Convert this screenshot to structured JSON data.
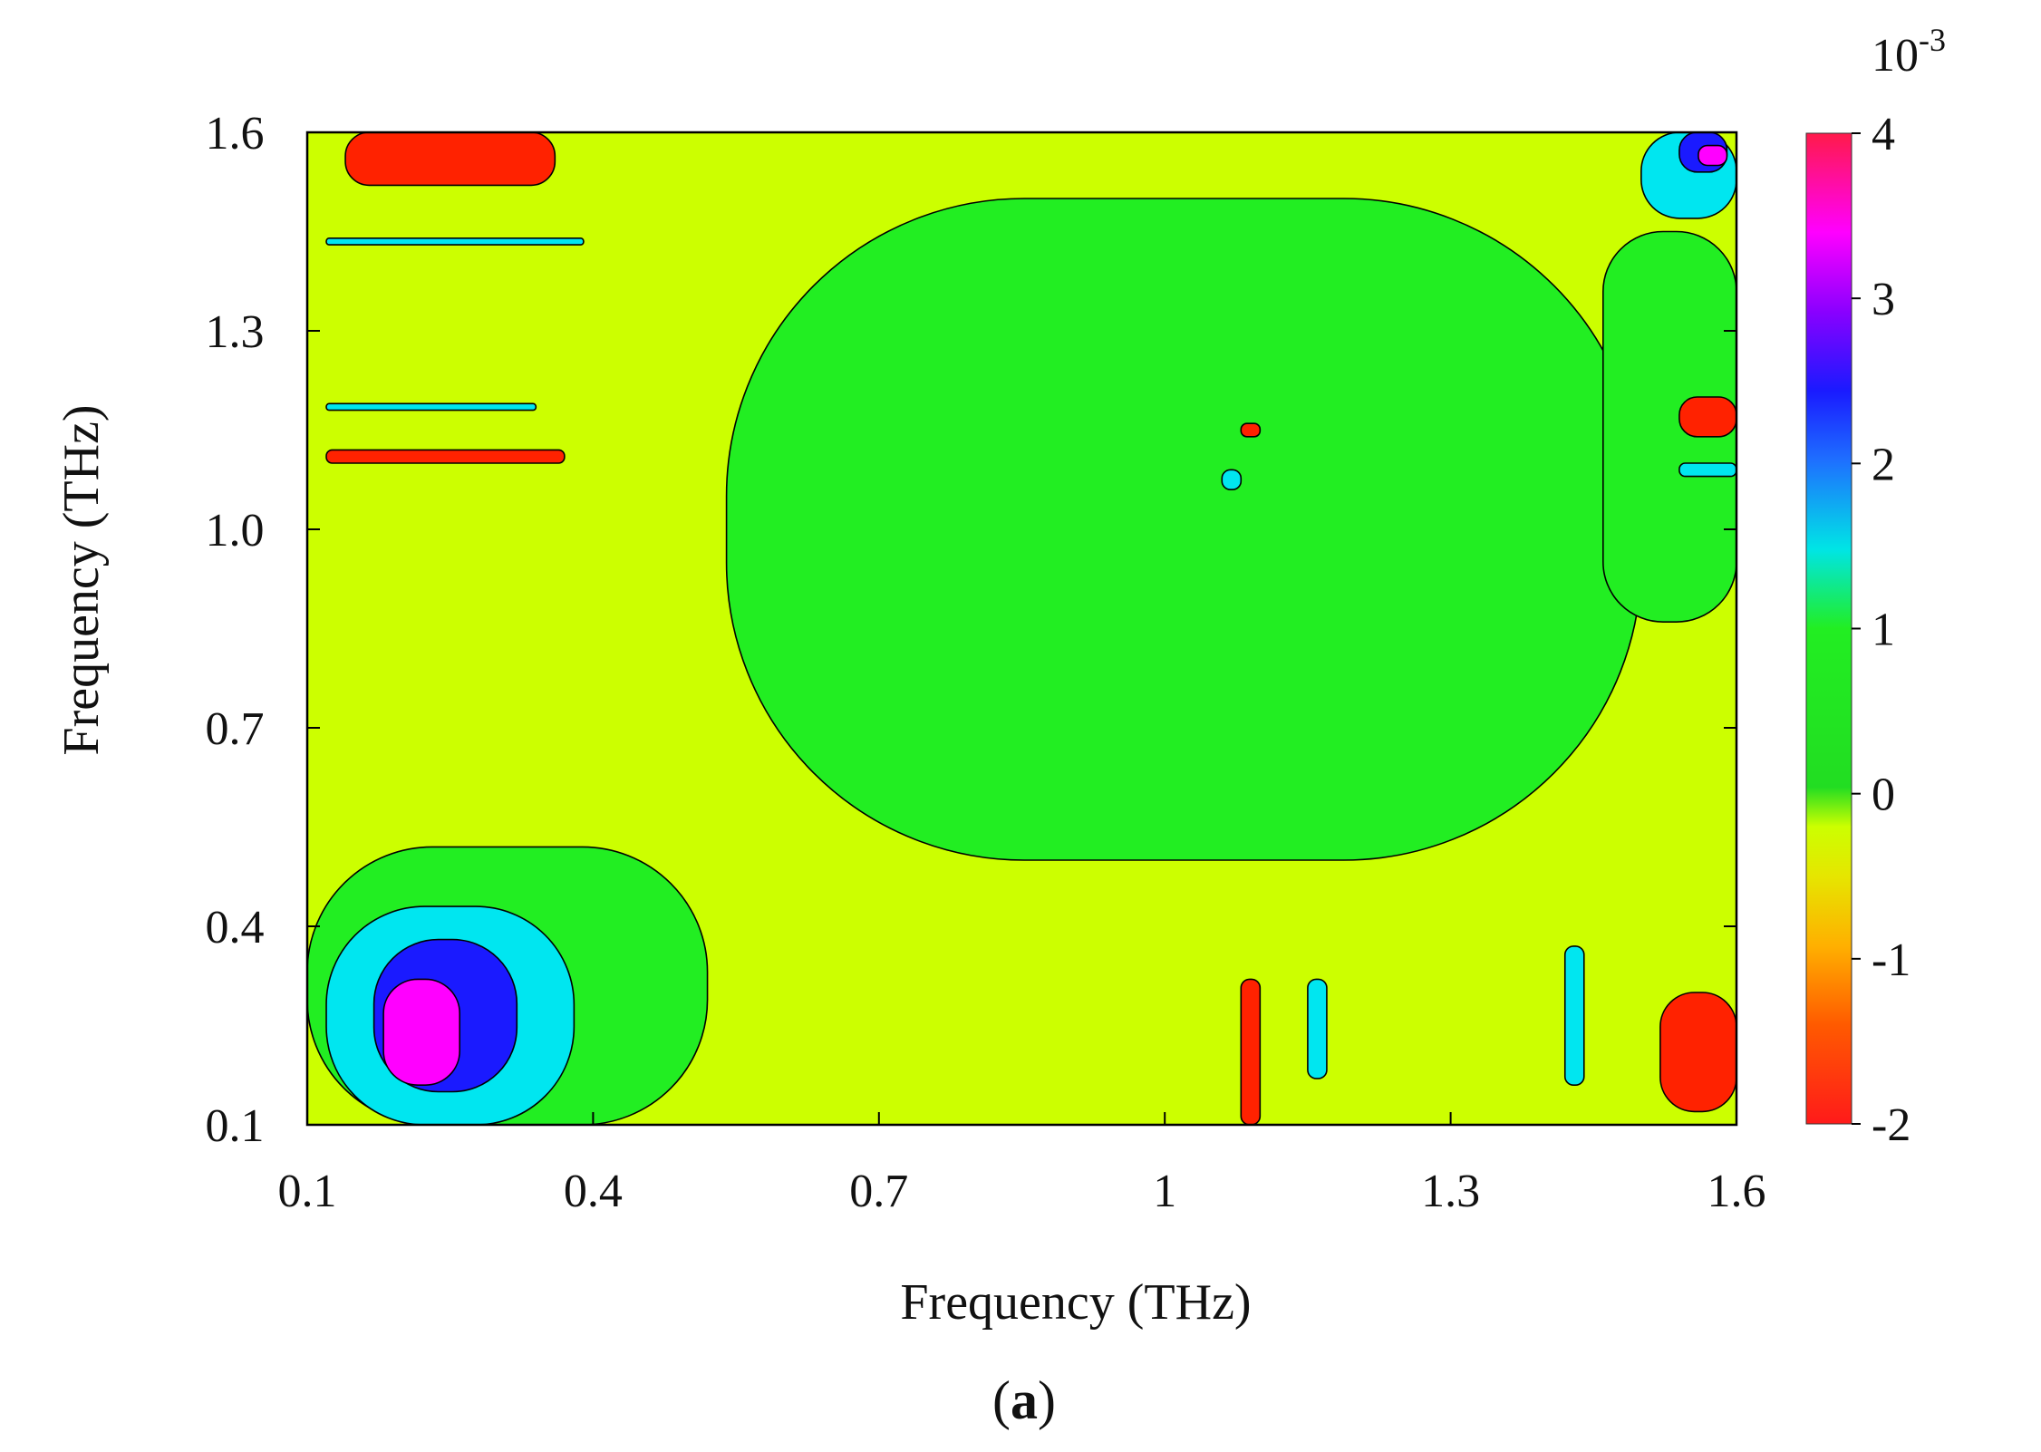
{
  "chart_data": {
    "type": "heatmap",
    "xlabel": "Frequency (THz)",
    "ylabel": "Frequency (THz)",
    "xlim": [
      0.1,
      1.6
    ],
    "ylim": [
      0.1,
      1.6
    ],
    "x_ticks": [
      "0.1",
      "0.4",
      "0.7",
      "1",
      "1.3",
      "1.6"
    ],
    "y_ticks": [
      "0.1",
      "0.4",
      "0.7",
      "1.0",
      "1.3",
      "1.6"
    ],
    "colorbar": {
      "range": [
        -2,
        4
      ],
      "ticks": [
        "-2",
        "-1",
        "0",
        "1",
        "2",
        "3",
        "4"
      ],
      "exponent_base": "10",
      "exponent_power": "-3",
      "colors": [
        "#ff1a1a",
        "#ff8a00",
        "#e6e600",
        "#ccff00",
        "#22dd22",
        "#00e5e5",
        "#1e6fff",
        "#1a1aff",
        "#b000ff",
        "#ff00ff"
      ]
    },
    "background_level": -0.6,
    "features": [
      {
        "x": [
          0.12,
          0.38
        ],
        "y": [
          0.1,
          0.43
        ],
        "level": 1.0
      },
      {
        "x": [
          0.17,
          0.32
        ],
        "y": [
          0.15,
          0.38
        ],
        "level": 2.0
      },
      {
        "x": [
          0.18,
          0.26
        ],
        "y": [
          0.16,
          0.32
        ],
        "level": 3.0
      },
      {
        "x": [
          0.1,
          0.52
        ],
        "y": [
          0.1,
          0.52
        ],
        "level": 0.3
      },
      {
        "x": [
          0.12,
          0.39
        ],
        "y": [
          1.43,
          1.44
        ],
        "level": 1.0
      },
      {
        "x": [
          0.12,
          0.34
        ],
        "y": [
          1.18,
          1.19
        ],
        "level": 1.0
      },
      {
        "x": [
          0.12,
          0.37
        ],
        "y": [
          1.1,
          1.12
        ],
        "level": -1.6
      },
      {
        "x": [
          0.14,
          0.36
        ],
        "y": [
          1.52,
          1.6
        ],
        "level": -1.6
      },
      {
        "x": [
          1.08,
          1.1
        ],
        "y": [
          0.1,
          0.32
        ],
        "level": -1.8
      },
      {
        "x": [
          1.52,
          1.6
        ],
        "y": [
          0.12,
          0.3
        ],
        "level": -1.7
      },
      {
        "x": [
          1.5,
          1.6
        ],
        "y": [
          1.47,
          1.6
        ],
        "level": 1.0
      },
      {
        "x": [
          1.54,
          1.59
        ],
        "y": [
          1.54,
          1.6
        ],
        "level": 2.2
      },
      {
        "x": [
          1.56,
          1.59
        ],
        "y": [
          1.55,
          1.58
        ],
        "level": 3.4
      },
      {
        "x": [
          1.42,
          1.44
        ],
        "y": [
          0.16,
          0.37
        ],
        "level": 1.0
      },
      {
        "x": [
          1.15,
          1.17
        ],
        "y": [
          0.17,
          0.32
        ],
        "level": 1.0
      },
      {
        "x": [
          1.06,
          1.08
        ],
        "y": [
          1.06,
          1.09
        ],
        "level": 1.2
      },
      {
        "x": [
          1.08,
          1.1
        ],
        "y": [
          1.14,
          1.16
        ],
        "level": -1.6
      },
      {
        "x": [
          1.54,
          1.6
        ],
        "y": [
          1.14,
          1.2
        ],
        "level": -1.5
      },
      {
        "x": [
          1.54,
          1.6
        ],
        "y": [
          1.08,
          1.1
        ],
        "level": 1.0
      },
      {
        "x": [
          1.46,
          1.6
        ],
        "y": [
          0.86,
          1.45
        ],
        "level": 0.3
      },
      {
        "x": [
          0.54,
          1.5
        ],
        "y": [
          0.5,
          1.5
        ],
        "level": 0.25
      }
    ]
  },
  "panel_label": "a"
}
